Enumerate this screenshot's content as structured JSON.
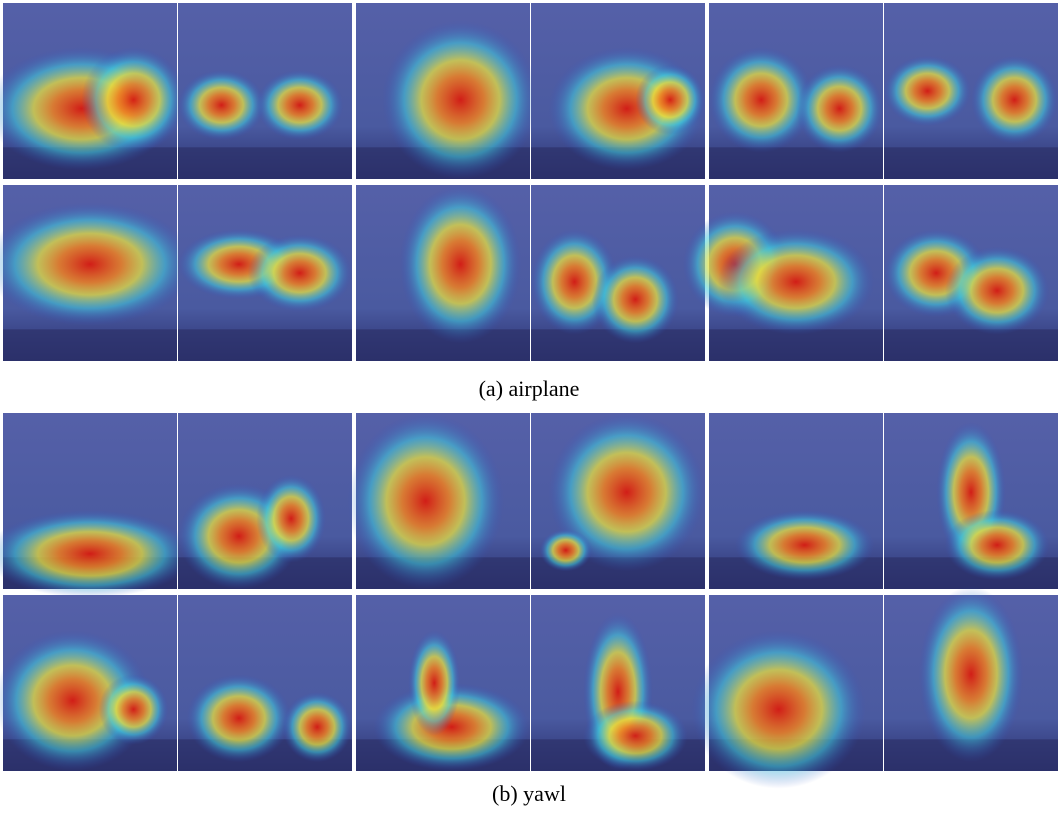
{
  "figure": {
    "panels": [
      {
        "caption": "(a) airplane"
      },
      {
        "caption": "(b) yawl"
      }
    ]
  }
}
